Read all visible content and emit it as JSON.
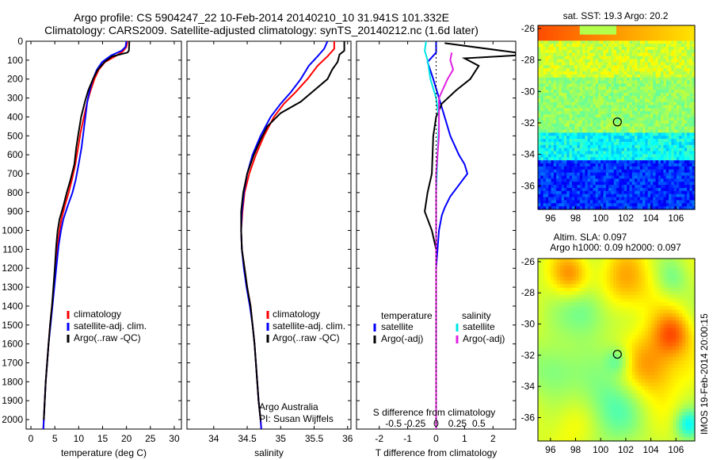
{
  "header": {
    "line1": "Argo profile: CS 5904247_22 10-Feb-2014 20140210_10 31.941S 101.332E",
    "line2": "Climatology: CARS2009. Satellite-adjusted climatology: synTS_20140212.nc (1.6d later)"
  },
  "side_label": "IMOS 19-Feb-2014 20:00:15",
  "chart_data": [
    {
      "type": "line",
      "id": "temperature",
      "xlabel": "temperature (deg C)",
      "xlim": [
        -1,
        31.5
      ],
      "xticks": [
        0,
        5,
        10,
        15,
        20,
        25,
        30
      ],
      "ylim": [
        0,
        2050
      ],
      "yticks": [
        0,
        100,
        200,
        300,
        400,
        500,
        600,
        700,
        800,
        900,
        1000,
        1100,
        1200,
        1300,
        1400,
        1500,
        1600,
        1700,
        1800,
        1900,
        2000
      ],
      "legend": [
        "climatology",
        "satellite-adj. clim.",
        "Argo(..raw -QC)"
      ],
      "series": [
        {
          "name": "climatology",
          "color": "#ff0000",
          "points": [
            [
              20.2,
              0
            ],
            [
              20.0,
              30
            ],
            [
              19.2,
              55
            ],
            [
              17.6,
              80
            ],
            [
              15.5,
              110
            ],
            [
              14.2,
              150
            ],
            [
              13.3,
              200
            ],
            [
              12.5,
              260
            ],
            [
              11.8,
              320
            ],
            [
              11.1,
              400
            ],
            [
              10.4,
              480
            ],
            [
              9.9,
              560
            ],
            [
              9.3,
              650
            ],
            [
              8.6,
              730
            ],
            [
              7.9,
              800
            ],
            [
              7.1,
              870
            ],
            [
              6.4,
              940
            ],
            [
              6.0,
              1000
            ],
            [
              5.6,
              1080
            ],
            [
              5.2,
              1200
            ],
            [
              4.8,
              1300
            ],
            [
              4.4,
              1400
            ],
            [
              4.0,
              1500
            ],
            [
              3.7,
              1600
            ],
            [
              3.4,
              1700
            ],
            [
              3.1,
              1800
            ],
            [
              2.9,
              1900
            ],
            [
              2.7,
              2000
            ],
            [
              2.6,
              2050
            ]
          ]
        },
        {
          "name": "satellite-adj. clim.",
          "color": "#0000ff",
          "points": [
            [
              20.0,
              0
            ],
            [
              19.8,
              30
            ],
            [
              19.0,
              50
            ],
            [
              16.8,
              75
            ],
            [
              14.9,
              110
            ],
            [
              13.8,
              150
            ],
            [
              13.0,
              200
            ],
            [
              12.3,
              260
            ],
            [
              11.8,
              320
            ],
            [
              11.4,
              400
            ],
            [
              11.0,
              480
            ],
            [
              10.6,
              560
            ],
            [
              10.0,
              650
            ],
            [
              9.4,
              730
            ],
            [
              8.7,
              800
            ],
            [
              7.7,
              870
            ],
            [
              6.8,
              940
            ],
            [
              6.3,
              1000
            ],
            [
              5.8,
              1080
            ],
            [
              5.3,
              1200
            ],
            [
              4.9,
              1300
            ],
            [
              4.5,
              1400
            ],
            [
              4.1,
              1500
            ],
            [
              3.7,
              1600
            ],
            [
              3.4,
              1700
            ],
            [
              3.1,
              1800
            ],
            [
              2.9,
              1900
            ],
            [
              2.7,
              2000
            ],
            [
              2.6,
              2050
            ]
          ]
        },
        {
          "name": "Argo(..raw -QC)",
          "color": "#000000",
          "points": [
            [
              20.6,
              0
            ],
            [
              20.5,
              50
            ],
            [
              20.2,
              60
            ],
            [
              17.0,
              80
            ],
            [
              15.4,
              110
            ],
            [
              14.0,
              150
            ],
            [
              13.0,
              200
            ],
            [
              12.0,
              260
            ],
            [
              11.3,
              320
            ],
            [
              10.5,
              400
            ],
            [
              10.0,
              480
            ],
            [
              9.5,
              560
            ],
            [
              9.1,
              650
            ],
            [
              8.3,
              730
            ],
            [
              7.5,
              800
            ],
            [
              6.8,
              870
            ],
            [
              6.0,
              940
            ],
            [
              5.6,
              1000
            ],
            [
              5.3,
              1080
            ],
            [
              5.0,
              1200
            ],
            [
              4.7,
              1300
            ],
            [
              4.4,
              1400
            ],
            [
              4.0,
              1500
            ],
            [
              3.7,
              1600
            ],
            [
              3.4,
              1700
            ],
            [
              3.1,
              1800
            ],
            [
              2.9,
              1900
            ],
            [
              2.7,
              2000
            ]
          ]
        }
      ]
    },
    {
      "type": "line",
      "id": "salinity",
      "xlabel": "salinity",
      "xlim": [
        33.6,
        36.05
      ],
      "xticks": [
        34,
        34.5,
        35,
        35.5,
        36
      ],
      "xticklabels": [
        "34",
        "34.5",
        "35",
        "35.5",
        "36"
      ],
      "ylim": [
        0,
        2050
      ],
      "legend": [
        "climatology",
        "satellite-adj. clim.",
        "Argo(..raw -QC)"
      ],
      "note": [
        "Argo Australia",
        "PI: Susan Wijffels"
      ],
      "series": [
        {
          "name": "climatology",
          "color": "#ff0000",
          "points": [
            [
              35.8,
              0
            ],
            [
              35.8,
              40
            ],
            [
              35.7,
              80
            ],
            [
              35.55,
              130
            ],
            [
              35.4,
              200
            ],
            [
              35.22,
              270
            ],
            [
              35.05,
              330
            ],
            [
              34.9,
              400
            ],
            [
              34.75,
              500
            ],
            [
              34.63,
              600
            ],
            [
              34.53,
              700
            ],
            [
              34.46,
              800
            ],
            [
              34.43,
              900
            ],
            [
              34.41,
              1000
            ],
            [
              34.42,
              1100
            ],
            [
              34.46,
              1200
            ],
            [
              34.5,
              1300
            ],
            [
              34.55,
              1400
            ],
            [
              34.58,
              1500
            ],
            [
              34.61,
              1600
            ],
            [
              34.63,
              1700
            ],
            [
              34.65,
              1800
            ],
            [
              34.67,
              1900
            ],
            [
              34.7,
              2000
            ],
            [
              34.71,
              2050
            ]
          ]
        },
        {
          "name": "satellite-adj. clim.",
          "color": "#0000ff",
          "points": [
            [
              35.7,
              0
            ],
            [
              35.65,
              40
            ],
            [
              35.55,
              80
            ],
            [
              35.42,
              130
            ],
            [
              35.3,
              200
            ],
            [
              35.15,
              270
            ],
            [
              35.0,
              330
            ],
            [
              34.85,
              400
            ],
            [
              34.7,
              500
            ],
            [
              34.58,
              600
            ],
            [
              34.5,
              700
            ],
            [
              34.45,
              800
            ],
            [
              34.42,
              900
            ],
            [
              34.41,
              1000
            ],
            [
              34.42,
              1100
            ],
            [
              34.45,
              1200
            ],
            [
              34.49,
              1300
            ],
            [
              34.54,
              1400
            ],
            [
              34.58,
              1500
            ],
            [
              34.61,
              1600
            ],
            [
              34.63,
              1700
            ],
            [
              34.65,
              1800
            ],
            [
              34.67,
              1900
            ],
            [
              34.7,
              2000
            ],
            [
              34.71,
              2050
            ]
          ]
        },
        {
          "name": "Argo(..raw -QC)",
          "color": "#000000",
          "points": [
            [
              35.95,
              0
            ],
            [
              35.95,
              50
            ],
            [
              35.88,
              70
            ],
            [
              35.85,
              110
            ],
            [
              35.77,
              150
            ],
            [
              35.7,
              200
            ],
            [
              35.5,
              260
            ],
            [
              35.3,
              320
            ],
            [
              35.0,
              380
            ],
            [
              34.8,
              450
            ],
            [
              34.7,
              520
            ],
            [
              34.6,
              600
            ],
            [
              34.5,
              700
            ],
            [
              34.44,
              800
            ],
            [
              34.41,
              900
            ],
            [
              34.41,
              1000
            ],
            [
              34.42,
              1100
            ],
            [
              34.46,
              1200
            ],
            [
              34.5,
              1300
            ],
            [
              34.55,
              1400
            ],
            [
              34.58,
              1500
            ],
            [
              34.61,
              1600
            ],
            [
              34.63,
              1700
            ],
            [
              34.65,
              1800
            ],
            [
              34.67,
              1900
            ],
            [
              34.7,
              2000
            ]
          ]
        }
      ]
    },
    {
      "type": "line",
      "id": "difference",
      "xlabel": "T difference from climatology",
      "xlabel_top": "S difference from climatology",
      "xlim": [
        -2.8,
        2.8
      ],
      "xticks": [
        -2,
        -1,
        0,
        1,
        2
      ],
      "xticks_top_labels": [
        "-0.5",
        "-0.25",
        "0",
        "0.25",
        "0.5"
      ],
      "ylim": [
        0,
        2050
      ],
      "legend_temperature_title": "temperature",
      "legend_salinity_title": "salinity",
      "legend_temperature": [
        "satellite",
        "Argo(-adj)"
      ],
      "legend_salinity": [
        "satellite",
        "Argo(-adj)"
      ],
      "series": [
        {
          "name": "satellite",
          "color": "#0000ff",
          "points": [
            [
              0.0,
              0
            ],
            [
              0.0,
              60
            ],
            [
              -0.3,
              110
            ],
            [
              -0.1,
              200
            ],
            [
              0.1,
              300
            ],
            [
              0.3,
              400
            ],
            [
              0.5,
              500
            ],
            [
              0.8,
              600
            ],
            [
              1.0,
              650
            ],
            [
              1.1,
              700
            ],
            [
              0.8,
              760
            ],
            [
              0.5,
              820
            ],
            [
              0.3,
              880
            ],
            [
              0.2,
              920
            ],
            [
              0.1,
              1000
            ],
            [
              0.05,
              1100
            ],
            [
              0.0,
              1200
            ],
            [
              0.0,
              2050
            ]
          ]
        },
        {
          "name": "Argo(-adj)",
          "color": "#000000",
          "points": [
            [
              0.3,
              10
            ],
            [
              2.8,
              60
            ],
            [
              2.8,
              75
            ],
            [
              1.0,
              90
            ],
            [
              1.5,
              130
            ],
            [
              1.2,
              200
            ],
            [
              0.7,
              260
            ],
            [
              0.2,
              330
            ],
            [
              0.0,
              400
            ],
            [
              -0.1,
              500
            ],
            [
              -0.15,
              700
            ],
            [
              -0.3,
              800
            ],
            [
              -0.4,
              900
            ],
            [
              -0.15,
              1000
            ],
            [
              0.0,
              1100
            ],
            [
              0.0,
              1200
            ],
            [
              0.0,
              2000
            ]
          ]
        },
        {
          "name": "satellite",
          "color": "#00e5e5",
          "points": [
            [
              -0.35,
              0
            ],
            [
              -0.4,
              50
            ],
            [
              -0.3,
              100
            ],
            [
              -0.2,
              200
            ],
            [
              0.0,
              300
            ],
            [
              0.1,
              400
            ],
            [
              0.05,
              600
            ],
            [
              0.0,
              800
            ],
            [
              0.0,
              1000
            ],
            [
              0.0,
              2050
            ]
          ]
        },
        {
          "name": "Argo(-adj)",
          "color": "#e020e0",
          "points": [
            [
              0.55,
              60
            ],
            [
              0.5,
              100
            ],
            [
              0.6,
              150
            ],
            [
              0.4,
              200
            ],
            [
              0.1,
              300
            ],
            [
              0.1,
              500
            ],
            [
              0.0,
              700
            ],
            [
              0.0,
              800
            ],
            [
              0.0,
              900
            ],
            [
              0.0,
              2050
            ]
          ]
        }
      ]
    },
    {
      "type": "heatmap",
      "id": "sst-map",
      "title": "sat. SST: 19.3 Argo: 20.2",
      "xlim": [
        95,
        107.5
      ],
      "ylim": [
        -37.5,
        -25.8
      ],
      "xticks": [
        96,
        98,
        100,
        102,
        104,
        106
      ],
      "yticks": [
        -26,
        -28,
        -30,
        -32,
        -34,
        -36
      ],
      "marker": [
        101.33,
        -31.94
      ]
    },
    {
      "type": "heatmap",
      "id": "sla-map",
      "title": [
        "Altim. SLA: 0.097",
        "Argo h1000: 0.09 h2000: 0.097"
      ],
      "xlim": [
        95,
        107.5
      ],
      "ylim": [
        -37.5,
        -25.8
      ],
      "xticks": [
        96,
        98,
        100,
        102,
        104,
        106
      ],
      "yticks": [
        -26,
        -28,
        -30,
        -32,
        -34,
        -36
      ],
      "marker": [
        101.33,
        -31.94
      ]
    }
  ]
}
